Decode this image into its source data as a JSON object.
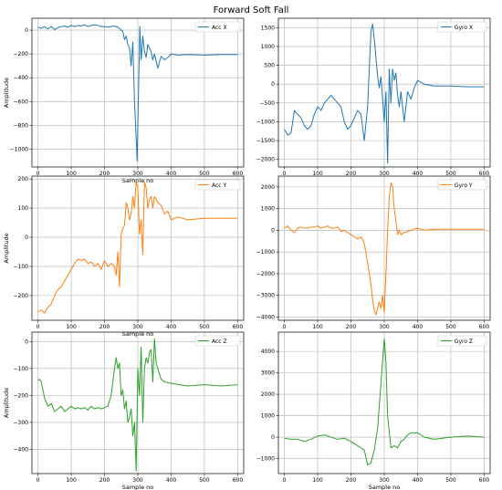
{
  "figure_title": "Forward Soft Fall",
  "colors": {
    "blue": "#1f77b4",
    "orange": "#ff7f0e",
    "green": "#2ca02c"
  },
  "chart_data": [
    {
      "type": "line",
      "xlabel": "Sample no",
      "ylabel": "Amplitude",
      "color": "#1f77b4",
      "xlim": [
        -18,
        618
      ],
      "ylim": [
        -1150,
        100
      ],
      "xticks": [
        0,
        100,
        200,
        300,
        400,
        500,
        600
      ],
      "yticks": [
        0,
        -200,
        -400,
        -600,
        -800,
        -1000
      ],
      "legend": "top-right",
      "series": [
        {
          "name": "Acc X",
          "x": [
            0,
            10,
            20,
            30,
            40,
            50,
            60,
            70,
            80,
            90,
            100,
            110,
            120,
            130,
            140,
            150,
            160,
            170,
            180,
            190,
            200,
            210,
            220,
            230,
            240,
            250,
            255,
            260,
            265,
            270,
            275,
            280,
            285,
            290,
            295,
            298,
            300,
            303,
            306,
            310,
            315,
            320,
            325,
            330,
            335,
            340,
            345,
            350,
            360,
            370,
            380,
            390,
            400,
            420,
            450,
            500,
            550,
            600
          ],
          "y": [
            25,
            15,
            30,
            10,
            30,
            5,
            20,
            30,
            35,
            25,
            40,
            30,
            40,
            35,
            45,
            30,
            40,
            45,
            40,
            30,
            30,
            25,
            30,
            35,
            25,
            0,
            -10,
            -80,
            -50,
            -120,
            -150,
            -300,
            -100,
            -600,
            -900,
            -1100,
            -800,
            -400,
            30,
            -250,
            -50,
            -180,
            -230,
            -120,
            -150,
            -180,
            -250,
            -200,
            -320,
            -220,
            -250,
            -230,
            -200,
            -210,
            -205,
            -210,
            -205,
            -205
          ]
        }
      ]
    },
    {
      "type": "line",
      "xlabel": "",
      "ylabel": "",
      "color": "#1f77b4",
      "xlim": [
        -18,
        618
      ],
      "ylim": [
        -2200,
        1750
      ],
      "xticks": [
        0,
        100,
        200,
        300,
        400,
        500,
        600
      ],
      "yticks": [
        1500,
        1000,
        500,
        0,
        -500,
        -1000,
        -1500,
        -2000
      ],
      "legend": "top-right",
      "series": [
        {
          "name": "Gyro X",
          "x": [
            0,
            10,
            20,
            30,
            40,
            50,
            60,
            70,
            80,
            90,
            100,
            110,
            120,
            130,
            140,
            150,
            160,
            170,
            180,
            190,
            200,
            210,
            220,
            230,
            240,
            250,
            260,
            265,
            270,
            275,
            280,
            285,
            290,
            295,
            300,
            305,
            310,
            315,
            320,
            325,
            330,
            335,
            340,
            345,
            350,
            360,
            370,
            380,
            390,
            400,
            420,
            450,
            500,
            550,
            600
          ],
          "y": [
            -1200,
            -1350,
            -1300,
            -700,
            -800,
            -900,
            -1100,
            -1200,
            -1100,
            -800,
            -600,
            -700,
            -500,
            -400,
            -300,
            -400,
            -500,
            -600,
            -1000,
            -1200,
            -1100,
            -900,
            -700,
            -800,
            -1500,
            -600,
            1400,
            1600,
            1200,
            700,
            200,
            -100,
            200,
            -400,
            -1000,
            -200,
            -2100,
            400,
            -500,
            400,
            100,
            300,
            -300,
            -600,
            -200,
            -1000,
            -200,
            -400,
            -100,
            100,
            0,
            -50,
            -50,
            -70,
            -70
          ]
        }
      ]
    },
    {
      "type": "line",
      "xlabel": "Sample no",
      "ylabel": "Amplitude",
      "color": "#ff7f0e",
      "xlim": [
        -18,
        618
      ],
      "ylim": [
        -285,
        210
      ],
      "xticks": [
        0,
        100,
        200,
        300,
        400,
        500,
        600
      ],
      "yticks": [
        200,
        100,
        0,
        -100,
        -200
      ],
      "legend": "top-right",
      "series": [
        {
          "name": "Acc Y",
          "x": [
            0,
            10,
            20,
            30,
            40,
            50,
            60,
            70,
            80,
            90,
            100,
            110,
            120,
            130,
            140,
            150,
            160,
            170,
            180,
            190,
            200,
            210,
            220,
            230,
            235,
            240,
            245,
            250,
            255,
            260,
            265,
            270,
            275,
            280,
            285,
            290,
            295,
            300,
            305,
            310,
            315,
            320,
            325,
            330,
            335,
            340,
            345,
            350,
            360,
            370,
            380,
            390,
            400,
            420,
            450,
            500,
            550,
            600
          ],
          "y": [
            -255,
            -250,
            -260,
            -240,
            -230,
            -200,
            -180,
            -170,
            -150,
            -130,
            -110,
            -90,
            -75,
            -80,
            -75,
            -90,
            -85,
            -100,
            -90,
            -110,
            -80,
            -100,
            -90,
            -100,
            -130,
            -50,
            -170,
            10,
            30,
            40,
            120,
            100,
            60,
            80,
            140,
            100,
            190,
            170,
            10,
            60,
            -60,
            190,
            170,
            100,
            130,
            140,
            100,
            140,
            120,
            110,
            80,
            90,
            60,
            70,
            60,
            65,
            65,
            65
          ]
        }
      ]
    },
    {
      "type": "line",
      "xlabel": "",
      "ylabel": "",
      "color": "#ff7f0e",
      "xlim": [
        -18,
        618
      ],
      "ylim": [
        -4150,
        2500
      ],
      "xticks": [
        0,
        100,
        200,
        300,
        400,
        500,
        600
      ],
      "yticks": [
        2000,
        1000,
        0,
        -1000,
        -2000,
        -3000,
        -4000
      ],
      "legend": "top-right",
      "series": [
        {
          "name": "Gyro Y",
          "x": [
            0,
            10,
            20,
            30,
            40,
            50,
            60,
            70,
            80,
            90,
            100,
            110,
            120,
            130,
            140,
            150,
            160,
            170,
            180,
            190,
            200,
            210,
            220,
            230,
            240,
            250,
            260,
            265,
            270,
            275,
            280,
            285,
            290,
            295,
            300,
            305,
            310,
            315,
            320,
            325,
            330,
            335,
            340,
            345,
            350,
            360,
            370,
            380,
            390,
            400,
            420,
            450,
            500,
            550,
            600
          ],
          "y": [
            100,
            200,
            0,
            -100,
            100,
            150,
            100,
            100,
            150,
            150,
            200,
            100,
            150,
            200,
            100,
            100,
            150,
            -50,
            0,
            -100,
            -200,
            -300,
            -400,
            -300,
            -600,
            -1500,
            -2500,
            -3200,
            -3700,
            -3900,
            -3600,
            -3300,
            -3600,
            -3000,
            -3800,
            -2000,
            0,
            1500,
            2200,
            2000,
            1000,
            400,
            -200,
            0,
            -200,
            -100,
            -50,
            0,
            50,
            100,
            0,
            50,
            50,
            50,
            50
          ]
        }
      ]
    },
    {
      "type": "line",
      "xlabel": "Sample no",
      "ylabel": "Amplitude",
      "color": "#2ca02c",
      "xlim": [
        -18,
        618
      ],
      "ylim": [
        -490,
        35
      ],
      "xticks": [
        0,
        100,
        200,
        300,
        400,
        500,
        600
      ],
      "yticks": [
        0,
        -100,
        -200,
        -300,
        -400
      ],
      "legend": "top-right",
      "series": [
        {
          "name": "Acc Z",
          "x": [
            0,
            5,
            10,
            20,
            30,
            40,
            50,
            60,
            70,
            80,
            90,
            100,
            110,
            120,
            130,
            140,
            150,
            160,
            170,
            180,
            190,
            200,
            210,
            220,
            230,
            235,
            240,
            245,
            250,
            255,
            260,
            265,
            270,
            275,
            280,
            285,
            290,
            295,
            300,
            305,
            310,
            315,
            320,
            325,
            330,
            335,
            340,
            345,
            350,
            355,
            360,
            370,
            380,
            400,
            450,
            500,
            550,
            600
          ],
          "y": [
            -145,
            -140,
            -150,
            -210,
            -240,
            -230,
            -260,
            -250,
            -240,
            -260,
            -250,
            -240,
            -250,
            -245,
            -250,
            -245,
            -255,
            -240,
            -250,
            -245,
            -250,
            -245,
            -240,
            -200,
            -100,
            -60,
            -100,
            -80,
            -200,
            -180,
            -250,
            -220,
            -300,
            -280,
            -250,
            -350,
            -300,
            -480,
            -100,
            -200,
            -20,
            -300,
            -100,
            -60,
            -80,
            -40,
            -30,
            -150,
            10,
            -80,
            -100,
            -140,
            -150,
            -155,
            -165,
            -160,
            -165,
            -160
          ]
        }
      ]
    },
    {
      "type": "line",
      "xlabel": "Sample no",
      "ylabel": "",
      "color": "#2ca02c",
      "xlim": [
        -18,
        618
      ],
      "ylim": [
        -1700,
        4900
      ],
      "xticks": [
        0,
        100,
        200,
        300,
        400,
        500,
        600
      ],
      "yticks": [
        4000,
        3000,
        2000,
        1000,
        0,
        -1000
      ],
      "legend": "top-right",
      "series": [
        {
          "name": "Gyro Z",
          "x": [
            0,
            20,
            40,
            60,
            80,
            100,
            120,
            140,
            160,
            180,
            200,
            220,
            240,
            250,
            260,
            270,
            280,
            290,
            300,
            305,
            310,
            320,
            330,
            340,
            350,
            360,
            370,
            380,
            400,
            420,
            450,
            500,
            550,
            600
          ],
          "y": [
            -50,
            -100,
            -100,
            -200,
            -100,
            50,
            100,
            0,
            -100,
            -50,
            -200,
            -400,
            -600,
            -1300,
            -1200,
            -600,
            400,
            2500,
            4600,
            3500,
            1000,
            -500,
            -400,
            -500,
            -200,
            -100,
            100,
            200,
            200,
            0,
            -100,
            0,
            50,
            0
          ]
        }
      ]
    }
  ]
}
